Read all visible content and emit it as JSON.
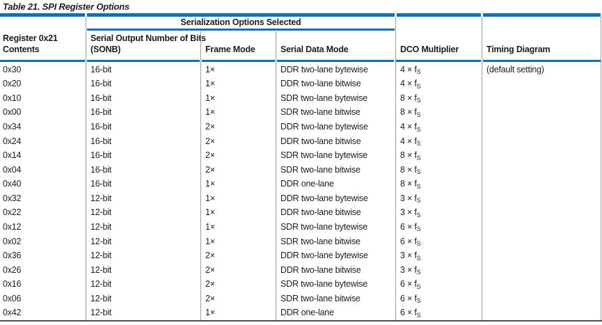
{
  "title": "Table 21. SPI Register Options",
  "table": {
    "group_header": "Serialization Options Selected",
    "columns": [
      {
        "id": "reg",
        "line1": "Register 0x21",
        "line2": "Contents"
      },
      {
        "id": "sonb",
        "line1": "Serial Output Number of Bits",
        "line2": "(SONB)"
      },
      {
        "id": "frame",
        "line1": "Frame Mode",
        "line2": ""
      },
      {
        "id": "mode",
        "line1": "Serial Data Mode",
        "line2": ""
      },
      {
        "id": "dco",
        "line1": "DCO Multiplier",
        "line2": ""
      },
      {
        "id": "timing",
        "line1": "Timing Diagram",
        "line2": ""
      }
    ],
    "dco_sub": "S",
    "rows": [
      {
        "reg": "0x30",
        "sonb": "16-bit",
        "frame": "1×",
        "mode": "DDR two-lane bytewise",
        "dco": "4 × f",
        "timing": "(default setting)"
      },
      {
        "reg": "0x20",
        "sonb": "16-bit",
        "frame": "1×",
        "mode": "DDR two-lane bitwise",
        "dco": "4 × f",
        "timing": ""
      },
      {
        "reg": "0x10",
        "sonb": "16-bit",
        "frame": "1×",
        "mode": "SDR two-lane bytewise",
        "dco": "8 × f",
        "timing": ""
      },
      {
        "reg": "0x00",
        "sonb": "16-bit",
        "frame": "1×",
        "mode": "SDR two-lane bitwise",
        "dco": "8 × f",
        "timing": ""
      },
      {
        "reg": "0x34",
        "sonb": "16-bit",
        "frame": "2×",
        "mode": "DDR two-lane bytewise",
        "dco": "4 × f",
        "timing": ""
      },
      {
        "reg": "0x24",
        "sonb": "16-bit",
        "frame": "2×",
        "mode": "DDR two-lane bitwise",
        "dco": "4 × f",
        "timing": ""
      },
      {
        "reg": "0x14",
        "sonb": "16-bit",
        "frame": "2×",
        "mode": "SDR two-lane bytewise",
        "dco": "8 × f",
        "timing": ""
      },
      {
        "reg": "0x04",
        "sonb": "16-bit",
        "frame": "2×",
        "mode": "SDR two-lane bitwise",
        "dco": "8 × f",
        "timing": ""
      },
      {
        "reg": "0x40",
        "sonb": "16-bit",
        "frame": "1×",
        "mode": "DDR one-lane",
        "dco": "8 × f",
        "timing": ""
      },
      {
        "reg": "0x32",
        "sonb": "12-bit",
        "frame": "1×",
        "mode": "DDR two-lane bytewise",
        "dco": "3 × f",
        "timing": ""
      },
      {
        "reg": "0x22",
        "sonb": "12-bit",
        "frame": "1×",
        "mode": "DDR two-lane bitwise",
        "dco": "3 × f",
        "timing": ""
      },
      {
        "reg": "0x12",
        "sonb": "12-bit",
        "frame": "1×",
        "mode": "SDR two-lane bytewise",
        "dco": "6 × f",
        "timing": ""
      },
      {
        "reg": "0x02",
        "sonb": "12-bit",
        "frame": "1×",
        "mode": "SDR two-lane bitwise",
        "dco": "6 × f",
        "timing": ""
      },
      {
        "reg": "0x36",
        "sonb": "12-bit",
        "frame": "2×",
        "mode": "DDR two-lane bytewise",
        "dco": "3 × f",
        "timing": ""
      },
      {
        "reg": "0x26",
        "sonb": "12-bit",
        "frame": "2×",
        "mode": "DDR two-lane bitwise",
        "dco": "3 × f",
        "timing": ""
      },
      {
        "reg": "0x16",
        "sonb": "12-bit",
        "frame": "2×",
        "mode": "SDR two-lane bytewise",
        "dco": "6 × f",
        "timing": ""
      },
      {
        "reg": "0x06",
        "sonb": "12-bit",
        "frame": "2×",
        "mode": "SDR two-lane bitwise",
        "dco": "6 × f",
        "timing": ""
      },
      {
        "reg": "0x42",
        "sonb": "12-bit",
        "frame": "1×",
        "mode": "DDR one-lane",
        "dco": "6 × f",
        "timing": ""
      }
    ]
  },
  "colors": {
    "accent_blue": "#0e6eb8",
    "grid_line": "#9c9c9c",
    "bottom_rule": "#4f4f4f",
    "text": "#1c1c1c"
  }
}
